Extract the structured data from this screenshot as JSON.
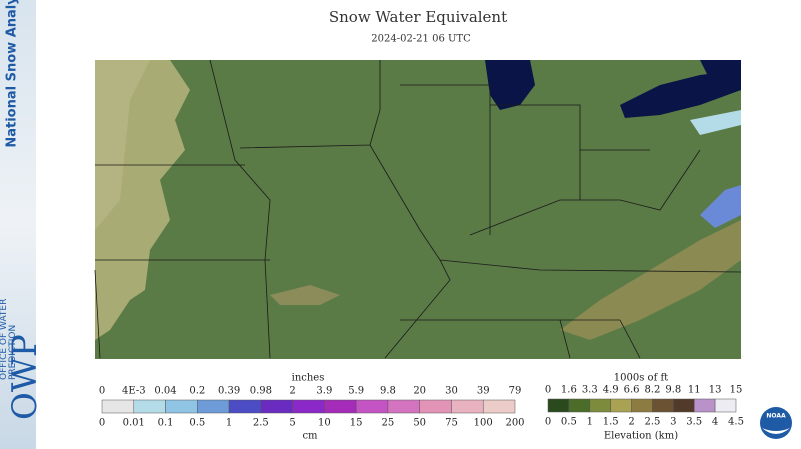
{
  "header": {
    "title": "Snow Water Equivalent",
    "date": "2024-02-21 06 UTC"
  },
  "sidebar": {
    "product": "National Snow Analysis",
    "logo": "OWP",
    "office": "OFFICE OF WATER PREDICTION"
  },
  "legend": {
    "snow": {
      "top_unit": "inches",
      "bottom_unit": "cm",
      "top_labels": [
        "0",
        "4E-3",
        "0.04",
        "0.2",
        "0.39",
        "0.98",
        "2",
        "3.9",
        "5.9",
        "9.8",
        "20",
        "30",
        "39",
        "79"
      ],
      "bottom_labels": [
        "0",
        "0.01",
        "0.1",
        "0.5",
        "1",
        "2.5",
        "5",
        "10",
        "15",
        "25",
        "50",
        "75",
        "100",
        "200"
      ],
      "colors": [
        "#e6e6e6",
        "#b4dce8",
        "#90c4e4",
        "#6e9cd8",
        "#4c4cc4",
        "#6a2cc0",
        "#8a28c8",
        "#a42cb8",
        "#c454c4",
        "#d474c0",
        "#e294b6",
        "#e8b2c0",
        "#ecccc8"
      ]
    },
    "elevation": {
      "top_unit": "1000s of ft",
      "bottom_unit": "Elevation (km)",
      "top_labels": [
        "0",
        "1.6",
        "3.3",
        "4.9",
        "6.6",
        "8.2",
        "9.8",
        "11",
        "13",
        "15"
      ],
      "bottom_labels": [
        "0",
        "0.5",
        "1",
        "1.5",
        "2",
        "2.5",
        "3",
        "3.5",
        "4",
        "4.5"
      ],
      "colors": [
        "#2a4a1e",
        "#4c6c2a",
        "#7c8c3c",
        "#a8a252",
        "#8c7c42",
        "#6a5232",
        "#523a2a",
        "#b892c8",
        "#ececf2"
      ]
    }
  },
  "footer": {
    "agency": "NOAA"
  }
}
